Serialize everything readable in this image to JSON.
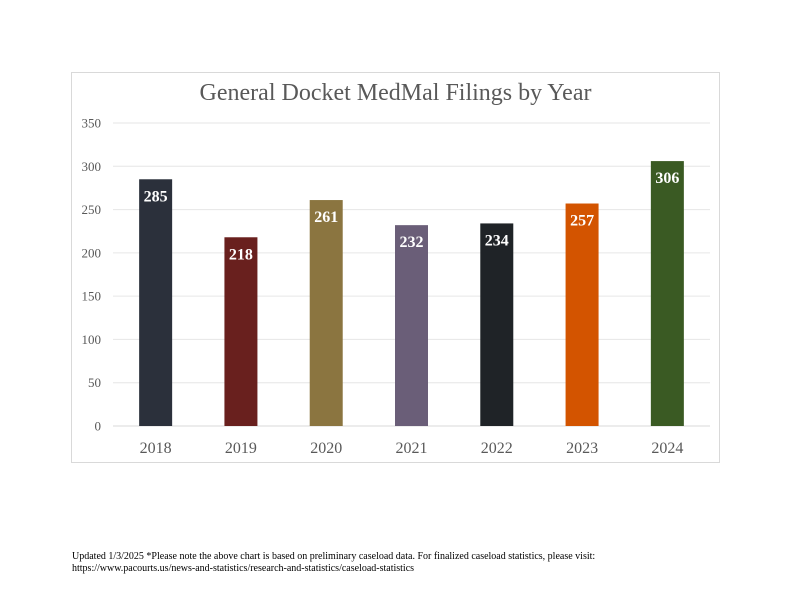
{
  "chart_data": {
    "type": "bar",
    "title": "General Docket MedMal Filings by Year",
    "categories": [
      "2018",
      "2019",
      "2020",
      "2021",
      "2022",
      "2023",
      "2024"
    ],
    "values": [
      285,
      218,
      261,
      232,
      234,
      257,
      306
    ],
    "data_labels": [
      "285",
      "218",
      "261",
      "232",
      "234",
      "257",
      "306"
    ],
    "colors": [
      "#2b303b",
      "#69201e",
      "#8b7540",
      "#6a5e78",
      "#1f2327",
      "#d35400",
      "#3a5a23"
    ],
    "ylim": [
      0,
      350
    ],
    "yticks": [
      "0",
      "50",
      "100",
      "150",
      "200",
      "250",
      "300",
      "350"
    ],
    "ytick_values": [
      0,
      50,
      100,
      150,
      200,
      250,
      300,
      350
    ],
    "grid": true,
    "legend": "none",
    "xlabel": "",
    "ylabel": ""
  },
  "footnote": {
    "line1": "Updated 1/3/2025  *Please note the above chart is based on preliminary caseload data.  For finalized caseload statistics, please visit:",
    "line2": "https://www.pacourts.us/news-and-statistics/research-and-statistics/caseload-statistics"
  }
}
